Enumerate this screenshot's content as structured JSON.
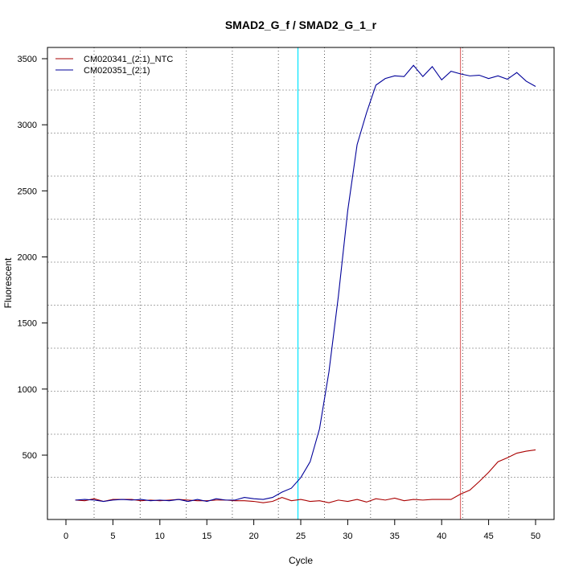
{
  "chart_data": {
    "type": "line",
    "title": "SMAD2_G_f / SMAD2_G_1_r",
    "xlabel": "Cycle",
    "ylabel": "Fluorescent",
    "xlim": [
      -2,
      52
    ],
    "ylim": [
      0,
      3500
    ],
    "xticks": [
      0,
      5,
      10,
      15,
      20,
      25,
      30,
      35,
      40,
      45,
      50
    ],
    "yticks": [
      500,
      1000,
      1500,
      2000,
      2500,
      3000,
      3500
    ],
    "grid": true,
    "legend_position": "top-left",
    "x": [
      1,
      2,
      3,
      4,
      5,
      6,
      7,
      8,
      9,
      10,
      11,
      12,
      13,
      14,
      15,
      16,
      17,
      18,
      19,
      20,
      21,
      22,
      23,
      24,
      25,
      26,
      27,
      28,
      29,
      30,
      31,
      32,
      33,
      34,
      35,
      36,
      37,
      38,
      39,
      40,
      41,
      42,
      43,
      44,
      45,
      46,
      47,
      48,
      49,
      50
    ],
    "series": [
      {
        "name": "CM020341_(2:1)_NTC",
        "color": "#aa0000",
        "values": [
          160,
          155,
          170,
          150,
          165,
          165,
          165,
          155,
          160,
          155,
          160,
          165,
          160,
          155,
          155,
          160,
          160,
          155,
          155,
          150,
          140,
          150,
          180,
          155,
          165,
          150,
          155,
          140,
          160,
          150,
          165,
          145,
          170,
          160,
          175,
          155,
          165,
          160,
          165,
          165,
          165,
          205,
          235,
          300,
          370,
          450,
          480,
          515,
          530,
          540
        ]
      },
      {
        "name": "CM020351_(2:1)",
        "color": "#000099",
        "values": [
          160,
          165,
          160,
          150,
          160,
          165,
          160,
          165,
          155,
          160,
          155,
          165,
          150,
          165,
          150,
          170,
          160,
          160,
          180,
          170,
          165,
          180,
          220,
          250,
          330,
          450,
          700,
          1130,
          1700,
          2350,
          2850,
          3090,
          3300,
          3350,
          3370,
          3365,
          3450,
          3365,
          3440,
          3340,
          3405,
          3385,
          3370,
          3375,
          3350,
          3370,
          3345,
          3395,
          3330,
          3290
        ]
      }
    ],
    "vertical_markers": [
      {
        "x": 24.7,
        "color": "#00e5ff"
      },
      {
        "x": 42.0,
        "color": "#e07070"
      }
    ]
  }
}
